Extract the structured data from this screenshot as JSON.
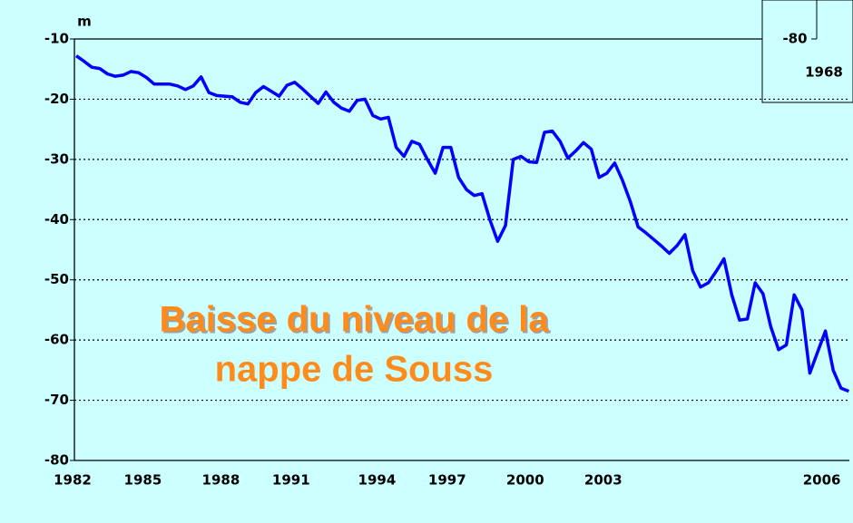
{
  "chart_data": {
    "type": "line",
    "y_label": "m",
    "annotations": [
      "Baisse du niveau de la",
      "nappe de Souss"
    ],
    "inset_texts": [
      "-80",
      "1968"
    ],
    "categories": [
      "1982",
      null,
      null,
      null,
      null,
      null,
      null,
      null,
      null,
      "1985",
      null,
      null,
      null,
      null,
      null,
      null,
      null,
      null,
      null,
      "1988",
      null,
      null,
      null,
      null,
      null,
      null,
      null,
      null,
      "1991",
      null,
      null,
      null,
      null,
      null,
      null,
      null,
      null,
      null,
      null,
      "1994",
      null,
      null,
      null,
      null,
      null,
      null,
      null,
      null,
      "1997",
      null,
      null,
      null,
      null,
      null,
      null,
      null,
      null,
      null,
      "2000",
      null,
      null,
      null,
      null,
      null,
      null,
      null,
      null,
      null,
      "2003",
      null,
      null,
      null,
      null,
      null,
      null,
      null,
      null,
      null,
      null,
      null,
      null,
      null,
      null,
      null,
      null,
      null,
      null,
      null,
      null,
      null,
      null,
      null,
      null,
      null,
      null,
      null,
      "2006",
      null,
      null,
      null
    ],
    "values": [
      -12.8,
      -13.7,
      -14.7,
      -14.9,
      -15.8,
      -16.2,
      -16.0,
      -15.4,
      -15.6,
      -16.4,
      -17.5,
      -17.5,
      -17.5,
      -17.8,
      -18.4,
      -17.8,
      -16.3,
      -18.9,
      -19.4,
      -19.5,
      -19.6,
      -20.5,
      -20.8,
      -18.9,
      -17.9,
      -18.7,
      -19.5,
      -17.7,
      -17.2,
      -18.3,
      -19.5,
      -20.7,
      -18.8,
      -20.5,
      -21.5,
      -22.0,
      -20.2,
      -20.0,
      -22.7,
      -23.3,
      -23.0,
      -28.0,
      -29.5,
      -27.0,
      -27.5,
      -30.0,
      -32.3,
      -28.0,
      -28.0,
      -33.0,
      -35.0,
      -36.0,
      -35.7,
      -40.0,
      -43.6,
      -41.0,
      -30.0,
      -29.5,
      -30.4,
      -30.5,
      -25.5,
      -25.3,
      -27.0,
      -29.8,
      -28.6,
      -27.2,
      -28.3,
      -33.0,
      -32.3,
      -30.6,
      -33.5,
      -37.0,
      -41.2,
      -42.2,
      -43.3,
      -44.4,
      -45.6,
      -44.3,
      -42.5,
      -48.5,
      -51.2,
      -50.5,
      -48.6,
      -46.5,
      -52.5,
      -56.7,
      -56.5,
      -50.5,
      -52.3,
      -57.8,
      -61.6,
      -60.8,
      -52.5,
      -55.0,
      -65.5,
      -62.0,
      -58.5,
      -65.0,
      -68.0,
      -68.5
    ],
    "color": "#0000ff",
    "ylim": [
      -80,
      -10
    ],
    "yticks": [
      -80,
      -70,
      -60,
      -50,
      -40,
      -30,
      -20,
      -10
    ],
    "grid": true
  }
}
